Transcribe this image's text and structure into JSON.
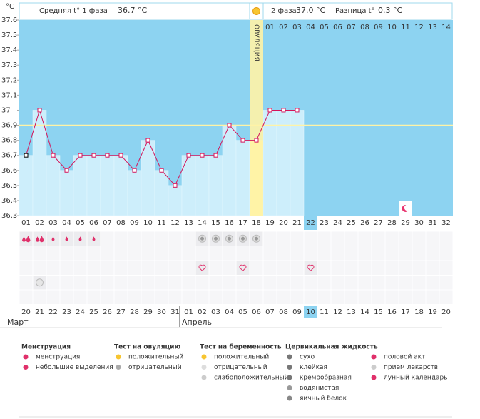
{
  "chart_data": {
    "type": "line",
    "unit": "°C",
    "phase1_label": "Средняя t° 1 фаза",
    "phase1_value": "36.7 °C",
    "phase2_label": "2 фаза",
    "phase2_value": "37.0 °C",
    "diff_label": "Разница t°",
    "diff_value": "0.3 °C",
    "categories": [
      "01",
      "02",
      "03",
      "04",
      "05",
      "06",
      "07",
      "08",
      "09",
      "10",
      "11",
      "12",
      "13",
      "14",
      "15",
      "16",
      "17",
      "18",
      "19",
      "20",
      "21",
      "22",
      "23",
      "24",
      "25",
      "26",
      "27",
      "28",
      "29",
      "30",
      "31",
      "32"
    ],
    "values": [
      36.7,
      37.0,
      36.7,
      36.6,
      36.7,
      36.7,
      36.7,
      36.7,
      36.6,
      36.8,
      36.6,
      36.5,
      36.7,
      36.7,
      36.7,
      36.9,
      36.8,
      36.8,
      37.0,
      37.0,
      37.0,
      null,
      null,
      null,
      null,
      null,
      null,
      null,
      null,
      null,
      null,
      null
    ],
    "color": "#d4145a",
    "ylim": [
      36.3,
      37.6
    ],
    "yticks": [
      36.3,
      36.4,
      36.5,
      36.6,
      36.7,
      36.8,
      36.9,
      37,
      37.1,
      37.2,
      37.3,
      37.4,
      37.5,
      37.6
    ],
    "coverline": 36.9,
    "ovulation_day": "18",
    "ovulation_label": "ОВУЛЯЦИЯ",
    "phase2_days": [
      "01",
      "02",
      "03",
      "04",
      "05",
      "06",
      "07",
      "08",
      "09",
      "10",
      "11",
      "12",
      "13",
      "14"
    ],
    "today": "22",
    "moon_day": "29",
    "symbols": [
      {
        "kind": "menstruation",
        "days": [
          "01",
          "02"
        ]
      },
      {
        "kind": "spotting",
        "days": [
          "03",
          "04",
          "05",
          "06"
        ]
      },
      {
        "kind": "ovulation-negative",
        "days": [
          "14",
          "15",
          "16",
          "17",
          "18"
        ]
      },
      {
        "kind": "intercourse",
        "days": [
          "14",
          "17",
          "22"
        ]
      },
      {
        "kind": "medication",
        "days": [
          "02"
        ]
      }
    ],
    "dates": [
      "20",
      "21",
      "22",
      "23",
      "24",
      "25",
      "26",
      "27",
      "28",
      "29",
      "30",
      "31",
      "01",
      "02",
      "03",
      "04",
      "05",
      "06",
      "07",
      "08",
      "09",
      "10",
      "11",
      "12",
      "13",
      "14",
      "15",
      "16",
      "17",
      "18",
      "19",
      "20"
    ],
    "weekend": [
      false,
      false,
      true,
      true,
      false,
      false,
      false,
      false,
      false,
      true,
      true,
      false,
      false,
      false,
      false,
      false,
      true,
      true,
      false,
      false,
      false,
      false,
      false,
      true,
      true,
      false,
      false,
      false,
      false,
      false,
      true,
      true
    ],
    "months": [
      {
        "label": "Март",
        "start": "20"
      },
      {
        "label": "Апрель",
        "start": "01"
      }
    ],
    "legend": [
      {
        "title": "Менструация",
        "items": [
          "менструация",
          "небольшие выделения"
        ]
      },
      {
        "title": "Тест на овуляцию",
        "items": [
          "положительный",
          "отрицательный"
        ]
      },
      {
        "title": "Тест на беременность",
        "items": [
          "положительный",
          "отрицательный",
          "слабоположительный"
        ]
      },
      {
        "title": "Цервикальная жидкость",
        "items": [
          "сухо",
          "клейкая",
          "кремообразная",
          "водянистая",
          "яичный белок"
        ]
      },
      {
        "items": [
          "половой акт",
          "прием лекарств",
          "лунный календарь"
        ]
      }
    ]
  }
}
